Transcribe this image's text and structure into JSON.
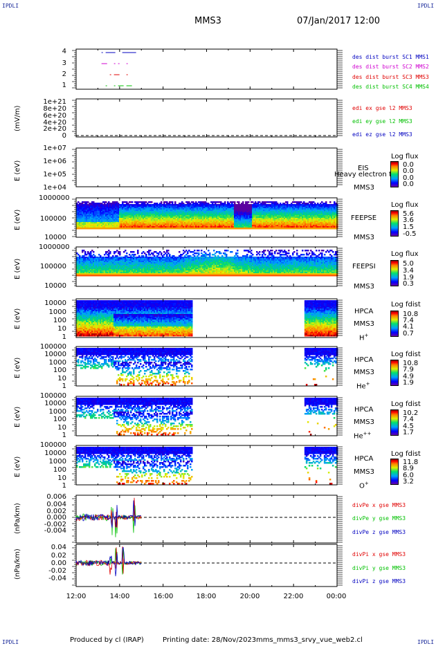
{
  "header": {
    "corner_left": "IPDLI",
    "corner_right": "IPDLI",
    "spacecraft": "MMS3",
    "datetime": "07/Jan/2017 12:00"
  },
  "footer": {
    "produced_by": "Produced by cl (IRAP)",
    "printing_date": "Printing date: 28/Nov/2023",
    "filename": "mms_mms3_srvy_vue_web2.cl",
    "corner_left": "IPDLI",
    "corner_right": "IPDLI"
  },
  "colors": {
    "red": "#e00000",
    "green": "#00c000",
    "blue": "#0000c0",
    "magenta": "#d000d0"
  },
  "chart_data": {
    "type": "multi-panel time series",
    "x_ticks": [
      "12:00",
      "14:00",
      "16:00",
      "18:00",
      "20:00",
      "22:00",
      "00:00"
    ],
    "panels": [
      {
        "id": "burst",
        "type": "scatter",
        "y_ticks": [
          "4",
          "3",
          "2",
          "1"
        ],
        "legend": [
          "des dist burst SC1 MMS1",
          "des dist burst SC2 MMS2",
          "des dist burst SC3 MMS3",
          "des dist burst SC4 MMS4"
        ],
        "series": [
          {
            "name": "des dist burst SC1 MMS1",
            "y": 4,
            "x_start": "13:10",
            "x_end": "14:40"
          },
          {
            "name": "des dist burst SC2 MMS2",
            "y": 3,
            "x_start": "13:10",
            "x_end": "14:40"
          },
          {
            "name": "des dist burst SC3 MMS3",
            "y": 2,
            "x_start": "13:10",
            "x_end": "14:40"
          },
          {
            "name": "des dist burst SC4 MMS4",
            "y": 1,
            "x_start": "13:10",
            "x_end": "14:40"
          }
        ]
      },
      {
        "id": "edi",
        "type": "line",
        "ylabel": "(mV/m)",
        "y_ticks": [
          "1e+21",
          "8e+20",
          "6e+20",
          "4e+20",
          "2e+20",
          "0"
        ],
        "legend": [
          "edi ex gse l2 MMS3",
          "edi ey gse l2 MMS3",
          "edi ez gse l2 MMS3"
        ]
      },
      {
        "id": "eis",
        "type": "heatmap",
        "ylabel": "E (eV)",
        "y_ticks": [
          "1e+07",
          "1e+06",
          "1e+05",
          "1e+04"
        ],
        "instrument": "EIS",
        "overlay_text": "Heavy electron to",
        "sc": "MMS3",
        "cbar_title": "Log flux",
        "cbar_values": [
          "0.0",
          "0.0",
          "0.0",
          "0.0"
        ]
      },
      {
        "id": "feepse",
        "type": "heatmap",
        "ylabel": "E (eV)",
        "y_ticks": [
          "1000000",
          "100000",
          "10000"
        ],
        "instrument": "FEEPSE",
        "sc": "MMS3",
        "cbar_title": "Log flux",
        "cbar_values": [
          "5.6",
          "3.6",
          "1.5",
          "-0.5"
        ]
      },
      {
        "id": "feepsi",
        "type": "heatmap",
        "ylabel": "E (eV)",
        "y_ticks": [
          "1000000",
          "100000",
          "10000"
        ],
        "instrument": "FEEPSI",
        "sc": "MMS3",
        "cbar_title": "Log flux",
        "cbar_values": [
          "5.0",
          "3.4",
          "1.9",
          "0.3"
        ]
      },
      {
        "id": "hpca_h",
        "type": "heatmap",
        "ylabel": "E (eV)",
        "y_ticks": [
          "10000",
          "1000",
          "100",
          "10",
          "1"
        ],
        "instrument": "HPCA",
        "sc": "MMS3",
        "species": "H",
        "charge": "+",
        "cbar_title": "Log fdist",
        "cbar_values": [
          "10.8",
          "7.4",
          "4.1",
          "0.7"
        ]
      },
      {
        "id": "hpca_he1",
        "type": "heatmap",
        "ylabel": "E (eV)",
        "y_ticks": [
          "100000",
          "10000",
          "1000",
          "100",
          "10",
          "1"
        ],
        "instrument": "HPCA",
        "sc": "MMS3",
        "species": "He",
        "charge": "+",
        "cbar_title": "Log fdist",
        "cbar_values": [
          "10.8",
          "7.9",
          "4.9",
          "1.9"
        ]
      },
      {
        "id": "hpca_he2",
        "type": "heatmap",
        "ylabel": "E (eV)",
        "y_ticks": [
          "100000",
          "10000",
          "1000",
          "100",
          "10",
          "1"
        ],
        "instrument": "HPCA",
        "sc": "MMS3",
        "species": "He",
        "charge": "++",
        "cbar_title": "Log fdist",
        "cbar_values": [
          "10.2",
          "7.4",
          "4.5",
          "1.7"
        ]
      },
      {
        "id": "hpca_o",
        "type": "heatmap",
        "ylabel": "E (eV)",
        "y_ticks": [
          "100000",
          "10000",
          "1000",
          "100",
          "10",
          "1"
        ],
        "instrument": "HPCA",
        "sc": "MMS3",
        "species": "O",
        "charge": "+",
        "cbar_title": "Log fdist",
        "cbar_values": [
          "11.8",
          "8.9",
          "6.0",
          "3.2"
        ]
      },
      {
        "id": "divpe",
        "type": "line",
        "ylabel": "(nPa/km)",
        "y_ticks": [
          "0.006",
          "0.004",
          "0.002",
          "0.000",
          "-0.002",
          "-0.004"
        ],
        "legend": [
          "divPe x gse MMS3",
          "divPe y gse MMS3",
          "divPe z gse MMS3"
        ]
      },
      {
        "id": "divpi",
        "type": "line",
        "ylabel": "(nPa/km)",
        "y_ticks": [
          "0.04",
          "0.02",
          "0.00",
          "-0.02",
          "-0.04"
        ],
        "legend": [
          "divPi x gse MMS3",
          "divPi y gse MMS3",
          "divPi z gse MMS3"
        ]
      }
    ]
  }
}
